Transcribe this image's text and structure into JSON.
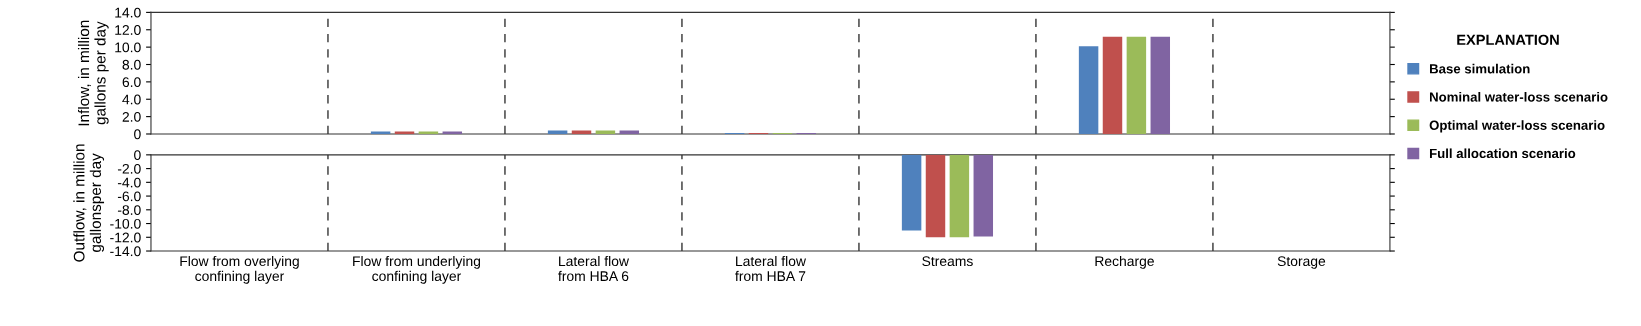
{
  "chart_data": [
    {
      "type": "bar",
      "ylabel": "Inflow, in million\ngallons per day",
      "series": [
        {
          "name": "Base simulation",
          "color": "#4f81bd",
          "values": [
            0,
            0.3,
            0.4,
            0.1,
            0,
            10.1,
            0
          ]
        },
        {
          "name": "Nominal water-loss scenario",
          "color": "#c0504d",
          "values": [
            0,
            0.3,
            0.4,
            0.1,
            0,
            11.2,
            0
          ]
        },
        {
          "name": "Optimal water-loss scenario",
          "color": "#9bbb59",
          "values": [
            0,
            0.3,
            0.4,
            0.1,
            0,
            11.2,
            0
          ]
        },
        {
          "name": "Full allocation scenario",
          "color": "#8064a2",
          "values": [
            0,
            0.3,
            0.4,
            0.1,
            0,
            11.2,
            0
          ]
        }
      ],
      "ylim": [
        0,
        14
      ],
      "yticks": [
        0,
        {
          "value": 2,
          "label": "2.0"
        },
        {
          "value": 4,
          "label": "4.0"
        },
        {
          "value": 6,
          "label": "6.0"
        },
        {
          "value": 8,
          "label": "8.0"
        },
        {
          "value": 10,
          "label": "10.0"
        },
        {
          "value": 12,
          "label": "12.0"
        },
        {
          "value": 14,
          "label": "14.0"
        }
      ],
      "tick_labels": "y",
      "grid": "x",
      "legend": "right",
      "legend_title": "EXPLANATION"
    },
    {
      "type": "bar",
      "ylabel": "Outflow, in million\ngallonsper day",
      "categories": [
        "Flow from overlying\nconfining layer",
        "Flow from underlying\nconfining layer",
        "Lateral flow\nfrom HBA 6",
        "Lateral flow\nfrom HBA 7",
        "Streams",
        "Recharge",
        "Storage"
      ],
      "series": [
        {
          "color": "#4f81bd",
          "values": [
            0,
            0,
            0,
            0,
            -11.0,
            0,
            0
          ]
        },
        {
          "color": "#c0504d",
          "values": [
            0,
            0,
            0,
            0,
            -12.0,
            0,
            0
          ]
        },
        {
          "color": "#9bbb59",
          "values": [
            0,
            0,
            0,
            0,
            -12.0,
            0,
            0
          ]
        },
        {
          "color": "#8064a2",
          "values": [
            0,
            0,
            0,
            0,
            -11.9,
            0,
            0
          ]
        }
      ],
      "ylim": [
        -14,
        0
      ],
      "yticks": [
        0,
        {
          "value": -2,
          "label": "-2.0"
        },
        {
          "value": -4,
          "label": "-4.0"
        },
        {
          "value": -6,
          "label": "-6.0"
        },
        {
          "value": -8,
          "label": "-8.0"
        },
        {
          "value": -10,
          "label": "-10.0"
        },
        {
          "value": -12,
          "label": "-12.0"
        },
        {
          "value": -14,
          "label": "-14.0"
        }
      ],
      "grid": "x"
    }
  ]
}
